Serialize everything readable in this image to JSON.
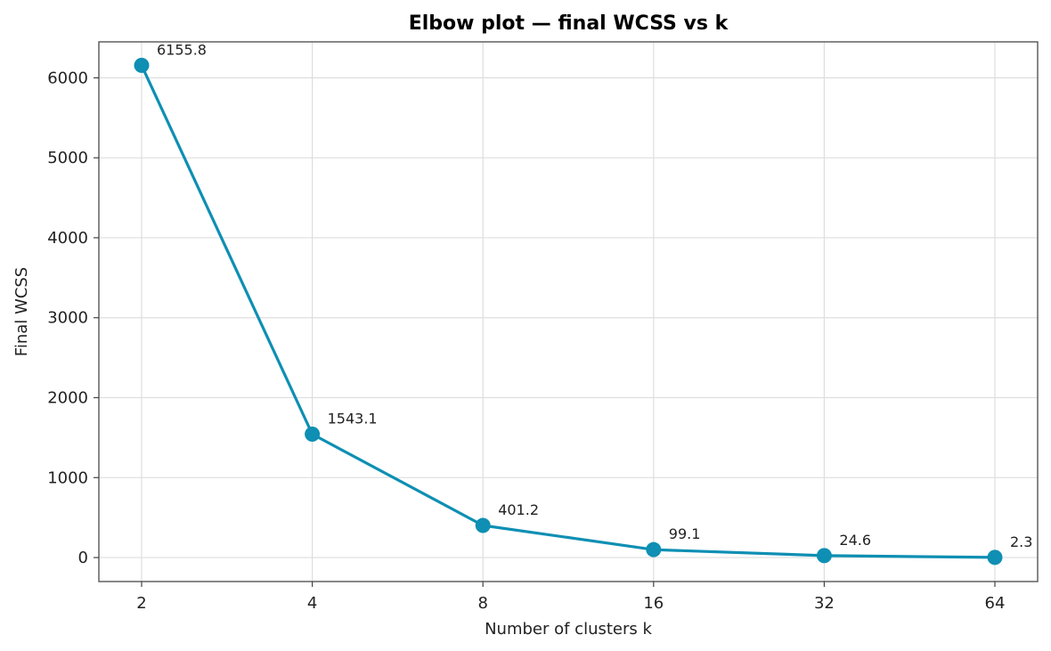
{
  "chart_data": {
    "type": "line",
    "title": "Elbow plot — final WCSS vs k",
    "xlabel": "Number of clusters  k",
    "ylabel": "Final WCSS",
    "x_scale": "log2",
    "categories": [
      "2",
      "4",
      "8",
      "16",
      "32",
      "64"
    ],
    "x": [
      2,
      4,
      8,
      16,
      32,
      64
    ],
    "series": [
      {
        "values": [
          6155.8,
          1543.1,
          401.2,
          99.1,
          24.6,
          2.3
        ],
        "labels": [
          "6155.8",
          "1543.1",
          "401.2",
          "99.1",
          "24.6",
          "2.3"
        ],
        "color": "#0e8fb3"
      }
    ],
    "yticks": [
      0,
      1000,
      2000,
      3000,
      4000,
      5000,
      6000
    ],
    "ytick_labels": [
      "0",
      "1000",
      "2000",
      "3000",
      "4000",
      "5000",
      "6000"
    ],
    "ylim": [
      -300,
      6450
    ],
    "grid": true,
    "markers": "circle"
  }
}
